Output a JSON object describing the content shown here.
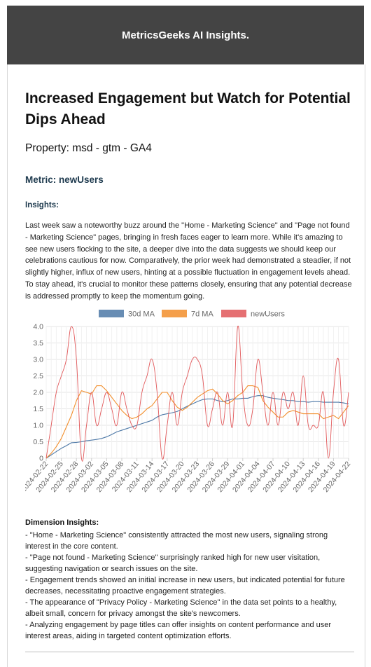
{
  "header": {
    "title": "MetricsGeeks AI Insights."
  },
  "report": {
    "headline": "Increased Engagement but Watch for Potential Dips Ahead",
    "property": "Property: msd - gtm - GA4",
    "metric": "Metric: newUsers",
    "insights_heading": "Insights:",
    "insights_text": "Last week saw a noteworthy buzz around the \"Home - Marketing Science\" and \"Page not found - Marketing Science\" pages, bringing in fresh faces eager to learn more. While it's amazing to see new users flocking to the site, a deeper dive into the data suggests we should keep our celebrations cautious for now. Comparatively, the prior week had demonstrated a steadier, if not slightly higher, influx of new users, hinting at a possible fluctuation in engagement levels ahead. To stay ahead, it's crucial to monitor these patterns closely, ensuring that any potential decrease is addressed promptly to keep the momentum going.",
    "dimension_heading": "Dimension Insights:",
    "dimension_items": [
      "- \"Home - Marketing Science\" consistently attracted the most new users, signaling strong interest in the core content.",
      "- \"Page not found - Marketing Science\" surprisingly ranked high for new user visitation, suggesting navigation or search issues on the site.",
      "- Engagement trends showed an initial increase in new users, but indicated potential for future decreases, necessitating proactive engagement strategies.",
      "- The appearance of \"Privacy Policy - Marketing Science\" in the data set points to a healthy, albeit small, concern for privacy amongst the site's newcomers.",
      "- Analyzing engagement by page titles can offer insights on content performance and user interest areas, aiding in targeted content optimization efforts."
    ]
  },
  "chart_data": {
    "type": "line",
    "ylim": [
      0,
      4
    ],
    "yticks": [
      "0",
      "0.5",
      "1.0",
      "1.5",
      "2.0",
      "2.5",
      "3.0",
      "3.5",
      "4.0"
    ],
    "x": [
      "2024-02-22",
      "2024-02-23",
      "2024-02-24",
      "2024-02-25",
      "2024-02-26",
      "2024-02-27",
      "2024-02-28",
      "2024-02-29",
      "2024-03-01",
      "2024-03-02",
      "2024-03-03",
      "2024-03-04",
      "2024-03-05",
      "2024-03-06",
      "2024-03-07",
      "2024-03-08",
      "2024-03-09",
      "2024-03-10",
      "2024-03-11",
      "2024-03-12",
      "2024-03-13",
      "2024-03-14",
      "2024-03-15",
      "2024-03-16",
      "2024-03-17",
      "2024-03-18",
      "2024-03-19",
      "2024-03-20",
      "2024-03-21",
      "2024-03-22",
      "2024-03-23",
      "2024-03-24",
      "2024-03-25",
      "2024-03-26",
      "2024-03-27",
      "2024-03-28",
      "2024-03-29",
      "2024-03-30",
      "2024-03-31",
      "2024-04-01",
      "2024-04-02",
      "2024-04-03",
      "2024-04-04",
      "2024-04-05",
      "2024-04-06",
      "2024-04-07",
      "2024-04-08",
      "2024-04-09",
      "2024-04-10",
      "2024-04-11",
      "2024-04-12",
      "2024-04-13",
      "2024-04-14",
      "2024-04-15",
      "2024-04-16",
      "2024-04-17",
      "2024-04-18",
      "2024-04-19",
      "2024-04-20",
      "2024-04-21",
      "2024-04-22"
    ],
    "xticks": [
      "2024-02-22",
      "2024-02-25",
      "2024-02-28",
      "2024-03-02",
      "2024-03-05",
      "2024-03-08",
      "2024-03-11",
      "2024-03-14",
      "2024-03-17",
      "2024-03-20",
      "2024-03-23",
      "2024-03-26",
      "2024-03-29",
      "2024-04-01",
      "2024-04-04",
      "2024-04-07",
      "2024-04-10",
      "2024-04-13",
      "2024-04-16",
      "2024-04-19",
      "2024-04-22"
    ],
    "series": [
      {
        "name": "30d MA",
        "color": "#4e79a7",
        "values": [
          0.0,
          0.1,
          0.2,
          0.3,
          0.38,
          0.47,
          0.48,
          0.5,
          0.53,
          0.55,
          0.57,
          0.6,
          0.65,
          0.72,
          0.8,
          0.85,
          0.9,
          0.95,
          1.0,
          1.05,
          1.1,
          1.15,
          1.25,
          1.32,
          1.35,
          1.38,
          1.42,
          1.5,
          1.58,
          1.65,
          1.72,
          1.78,
          1.8,
          1.8,
          1.75,
          1.72,
          1.75,
          1.8,
          1.8,
          1.82,
          1.82,
          1.87,
          1.9,
          1.9,
          1.85,
          1.82,
          1.8,
          1.78,
          1.75,
          1.75,
          1.72,
          1.72,
          1.7,
          1.72,
          1.72,
          1.7,
          1.7,
          1.7,
          1.7,
          1.68,
          1.65
        ]
      },
      {
        "name": "7d MA",
        "color": "#f28e2b",
        "values": [
          0.0,
          0.15,
          0.35,
          0.6,
          0.95,
          1.3,
          1.75,
          2.05,
          2.0,
          1.95,
          2.2,
          2.2,
          2.05,
          1.85,
          1.65,
          1.45,
          1.3,
          1.2,
          1.25,
          1.35,
          1.5,
          1.6,
          1.8,
          2.0,
          2.0,
          1.75,
          1.55,
          1.45,
          1.55,
          1.7,
          1.85,
          1.95,
          2.05,
          2.1,
          1.95,
          1.75,
          1.65,
          1.75,
          1.9,
          2.0,
          2.2,
          2.2,
          2.15,
          1.75,
          1.55,
          1.4,
          1.25,
          1.25,
          1.4,
          1.45,
          1.4,
          1.35,
          1.35,
          1.35,
          1.35,
          1.2,
          1.25,
          1.3,
          1.2,
          1.4,
          1.6
        ]
      },
      {
        "name": "newUsers",
        "color": "#e15759",
        "values": [
          0,
          1,
          2,
          2.5,
          3,
          4,
          3,
          0,
          1,
          2,
          1,
          1.5,
          2,
          1.5,
          1,
          2,
          1.5,
          1,
          1,
          2,
          2.5,
          3,
          2,
          0,
          1,
          2,
          1,
          2,
          2.5,
          3,
          3,
          2.5,
          1,
          1.5,
          2,
          1,
          2,
          1,
          4,
          2,
          1,
          1.5,
          3,
          2,
          1,
          2,
          1,
          2,
          1.5,
          2,
          1,
          2.5,
          1,
          1,
          1,
          2,
          0,
          2,
          3,
          1,
          2
        ]
      }
    ]
  }
}
